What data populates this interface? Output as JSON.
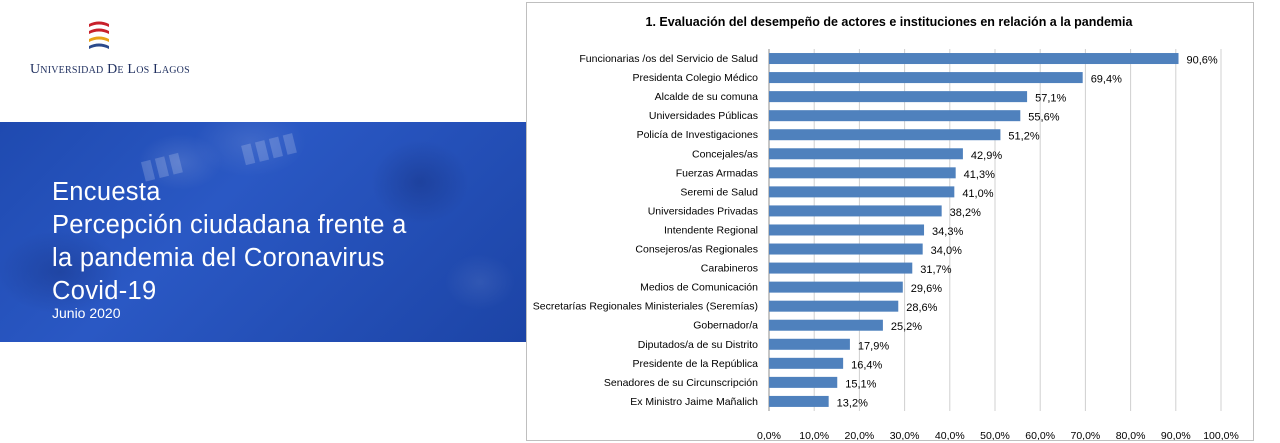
{
  "logo": {
    "university_name": "Universidad De Los Lagos",
    "icon": "university-crest-icon"
  },
  "banner": {
    "title_lines": [
      "Encuesta",
      "Percepción ciudadana frente a",
      "la pandemia del Coronavirus",
      "Covid-19"
    ],
    "date": "Junio 2020",
    "background_color": "#2451b8"
  },
  "chart_data": {
    "type": "bar",
    "orientation": "horizontal",
    "title": "1. Evaluación del desempeño de actores e instituciones en relación a la pandemia",
    "categories": [
      "Funcionarias /os del Servicio de Salud",
      "Presidenta Colegio Médico",
      "Alcalde de su comuna",
      "Universidades Públicas",
      "Policía de Investigaciones",
      "Concejales/as",
      "Fuerzas Armadas",
      "Seremi de Salud",
      "Universidades Privadas",
      "Intendente Regional",
      "Consejeros/as Regionales",
      "Carabineros",
      "Medios de Comunicación",
      "Secretarías Regionales Ministeriales (Seremías)",
      "Gobernador/a",
      "Diputados/a de su Distrito",
      "Presidente de la República",
      "Senadores de su Circunscripción",
      "Ex Ministro Jaime Mañalich"
    ],
    "values": [
      90.6,
      69.4,
      57.1,
      55.6,
      51.2,
      42.9,
      41.3,
      41.0,
      38.2,
      34.3,
      34.0,
      31.7,
      29.6,
      28.6,
      25.2,
      17.9,
      16.4,
      15.1,
      13.2
    ],
    "value_labels": [
      "90,6%",
      "69,4%",
      "57,1%",
      "55,6%",
      "51,2%",
      "42,9%",
      "41,3%",
      "41,0%",
      "38,2%",
      "34,3%",
      "34,0%",
      "31,7%",
      "29,6%",
      "28,6%",
      "25,2%",
      "17,9%",
      "16,4%",
      "15,1%",
      "13,2%"
    ],
    "xticks": [
      "0,0%",
      "10,0%",
      "20,0%",
      "30,0%",
      "40,0%",
      "50,0%",
      "60,0%",
      "70,0%",
      "80,0%",
      "90,0%",
      "100,0%"
    ],
    "xlim": [
      0,
      100
    ],
    "grid": true,
    "bar_color": "#4f81bd"
  }
}
